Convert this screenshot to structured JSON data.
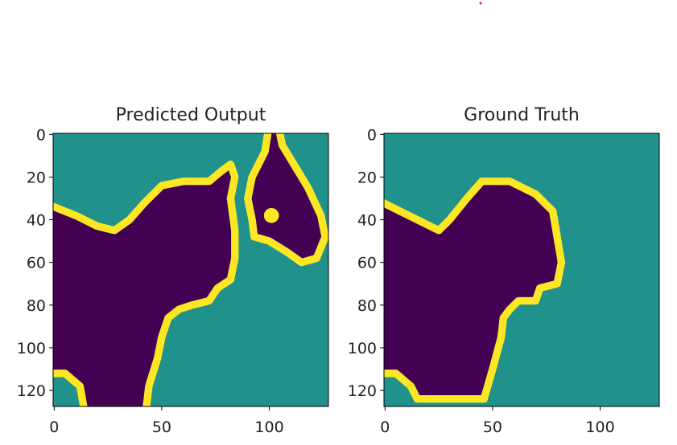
{
  "chart_data": [
    {
      "type": "image",
      "title": "Predicted Output",
      "xlim": [
        -0.5,
        127.5
      ],
      "ylim": [
        127.5,
        -0.5
      ],
      "xticks": [
        0,
        50,
        100
      ],
      "yticks": [
        0,
        20,
        40,
        60,
        80,
        100,
        120
      ]
    },
    {
      "type": "image",
      "title": "Ground Truth",
      "xlim": [
        -0.5,
        127.5
      ],
      "ylim": [
        127.5,
        -0.5
      ],
      "xticks": [
        0,
        50,
        100
      ],
      "yticks": [
        0,
        20,
        40,
        60,
        80,
        100,
        120
      ]
    }
  ]
}
